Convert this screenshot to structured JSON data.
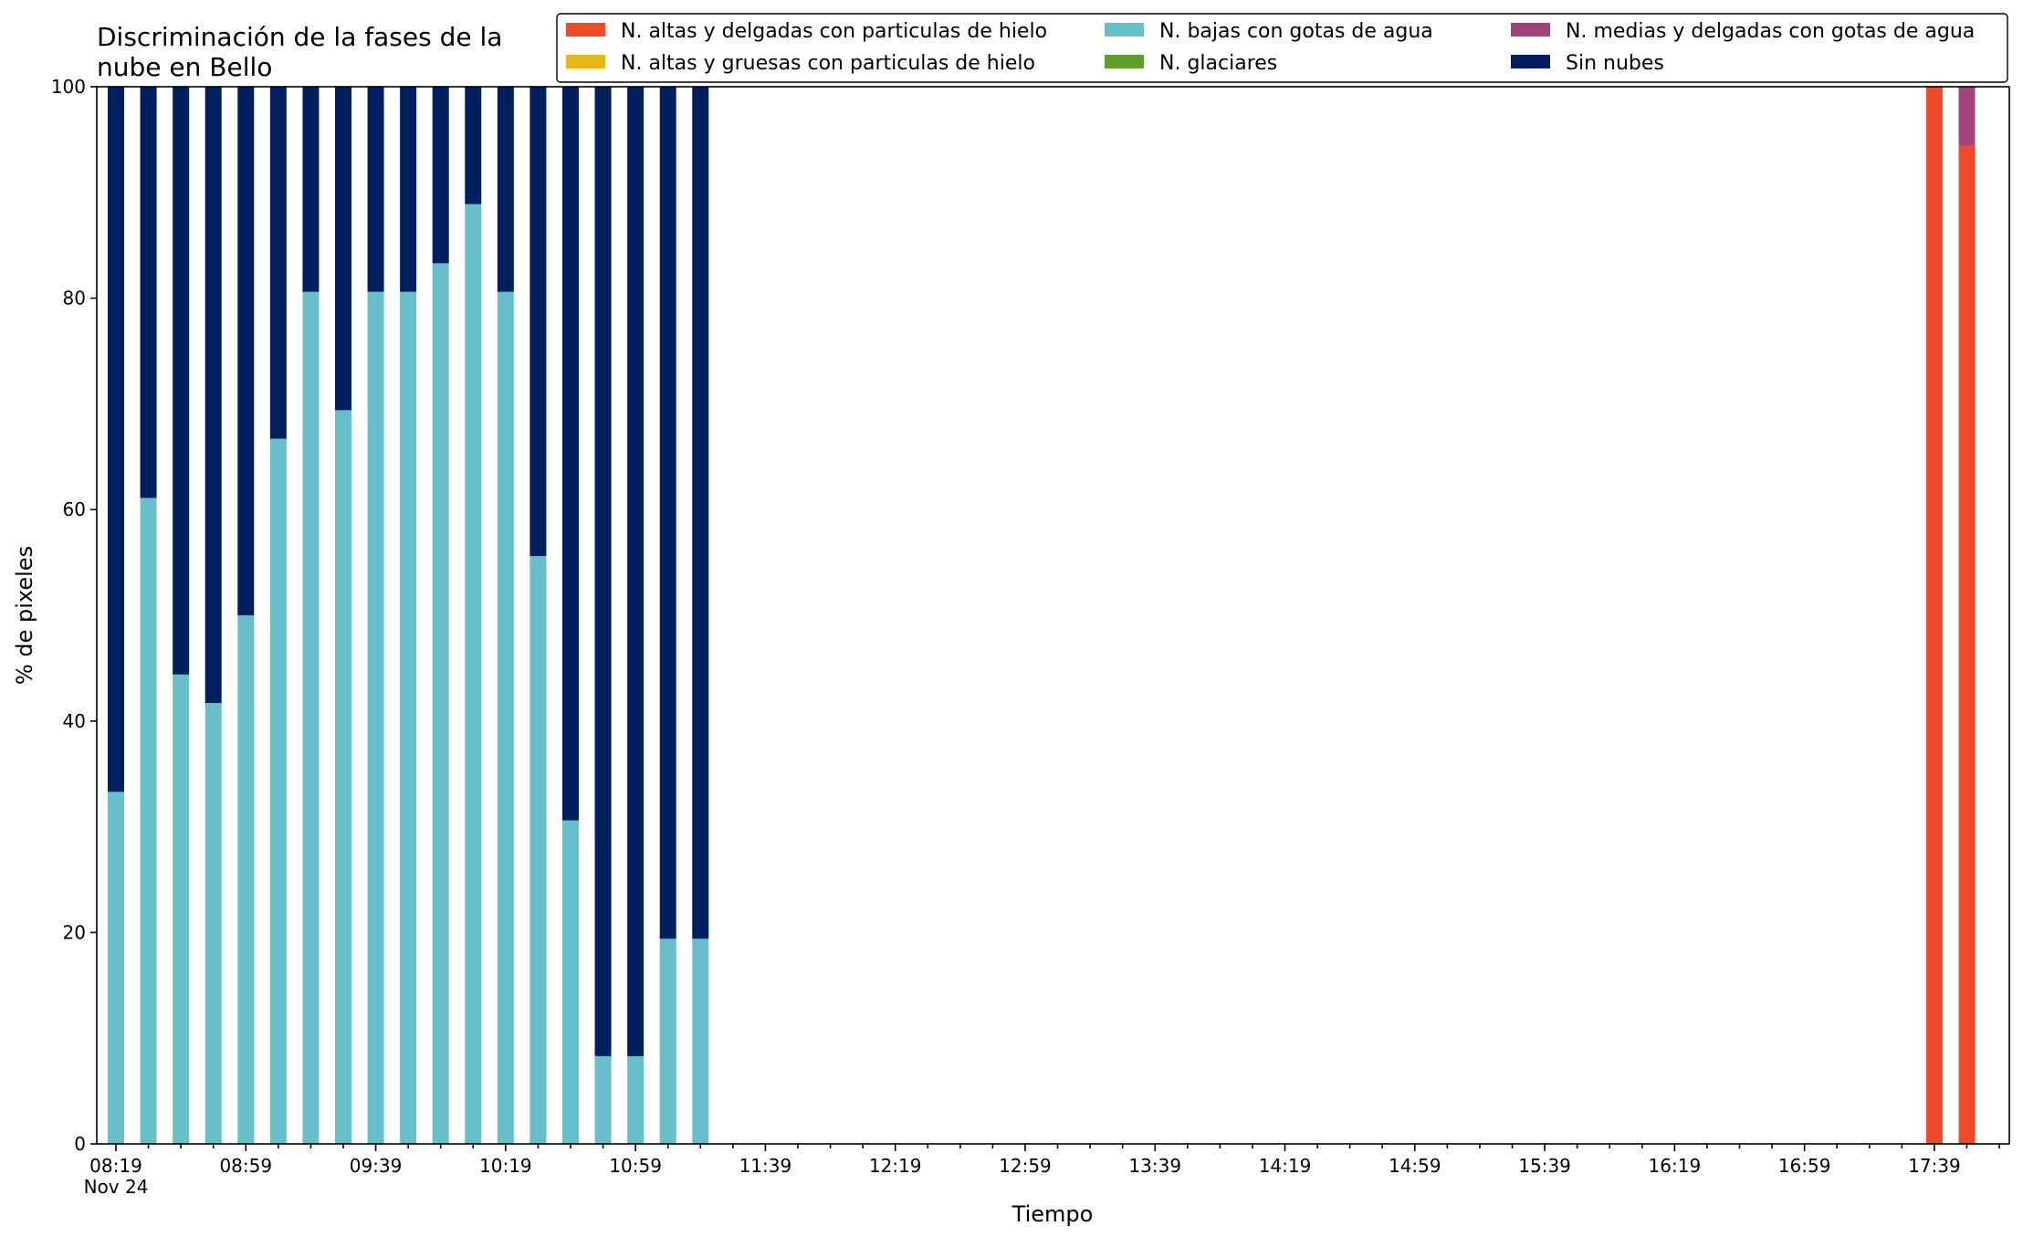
{
  "chart_data": {
    "type": "bar",
    "stacked": true,
    "title_lines": [
      "Discriminación de la fases de la",
      "nube en Bello"
    ],
    "xlabel": "Tiempo",
    "ylabel": "% de pixeles",
    "ylim": [
      0,
      100
    ],
    "yticks": [
      0,
      20,
      40,
      60,
      80,
      100
    ],
    "x_start": "08:19",
    "x_step_minutes": 10,
    "x_count": 59,
    "xtick_labels": [
      "08:19",
      "08:59",
      "09:39",
      "10:19",
      "10:59",
      "11:39",
      "12:19",
      "12:59",
      "13:39",
      "14:19",
      "14:59",
      "15:39",
      "16:19",
      "16:59",
      "17:39"
    ],
    "x_date_label": "Nov 24",
    "grid": false,
    "legend_position": "top-right",
    "series": [
      {
        "name": "N. altas y delgadas con particulas de hielo",
        "color": "#f04a2c",
        "points": [
          [
            "17:39",
            100
          ],
          [
            "17:49",
            94.4
          ]
        ]
      },
      {
        "name": "N. altas y gruesas con particulas de hielo",
        "color": "#e6b91a",
        "points": []
      },
      {
        "name": "N. bajas con gotas de agua",
        "color": "#67bfc9",
        "points": [
          [
            "08:19",
            33.3
          ],
          [
            "08:29",
            61.1
          ],
          [
            "08:39",
            44.4
          ],
          [
            "08:49",
            41.7
          ],
          [
            "08:59",
            50.0
          ],
          [
            "09:09",
            66.7
          ],
          [
            "09:19",
            80.6
          ],
          [
            "09:29",
            69.4
          ],
          [
            "09:39",
            80.6
          ],
          [
            "09:49",
            80.6
          ],
          [
            "09:59",
            83.3
          ],
          [
            "10:09",
            88.9
          ],
          [
            "10:19",
            80.6
          ],
          [
            "10:29",
            55.6
          ],
          [
            "10:39",
            30.6
          ],
          [
            "10:49",
            8.3
          ],
          [
            "10:59",
            8.3
          ],
          [
            "11:09",
            19.4
          ],
          [
            "11:19",
            19.4
          ]
        ]
      },
      {
        "name": "N. glaciares",
        "color": "#5e9e2e",
        "points": []
      },
      {
        "name": "N. medias y delgadas con gotas de agua",
        "color": "#a1437a",
        "points": [
          [
            "17:49",
            5.6
          ]
        ]
      },
      {
        "name": "Sin nubes",
        "color": "#001f5e",
        "points": [
          [
            "08:19",
            66.7
          ],
          [
            "08:29",
            38.9
          ],
          [
            "08:39",
            55.6
          ],
          [
            "08:49",
            58.3
          ],
          [
            "08:59",
            50.0
          ],
          [
            "09:09",
            33.3
          ],
          [
            "09:19",
            19.4
          ],
          [
            "09:29",
            30.6
          ],
          [
            "09:39",
            19.4
          ],
          [
            "09:49",
            19.4
          ],
          [
            "09:59",
            16.7
          ],
          [
            "10:09",
            11.1
          ],
          [
            "10:19",
            19.4
          ],
          [
            "10:29",
            44.4
          ],
          [
            "10:39",
            69.4
          ],
          [
            "10:49",
            91.7
          ],
          [
            "10:59",
            91.7
          ],
          [
            "11:09",
            80.6
          ],
          [
            "11:19",
            80.6
          ]
        ]
      }
    ]
  }
}
